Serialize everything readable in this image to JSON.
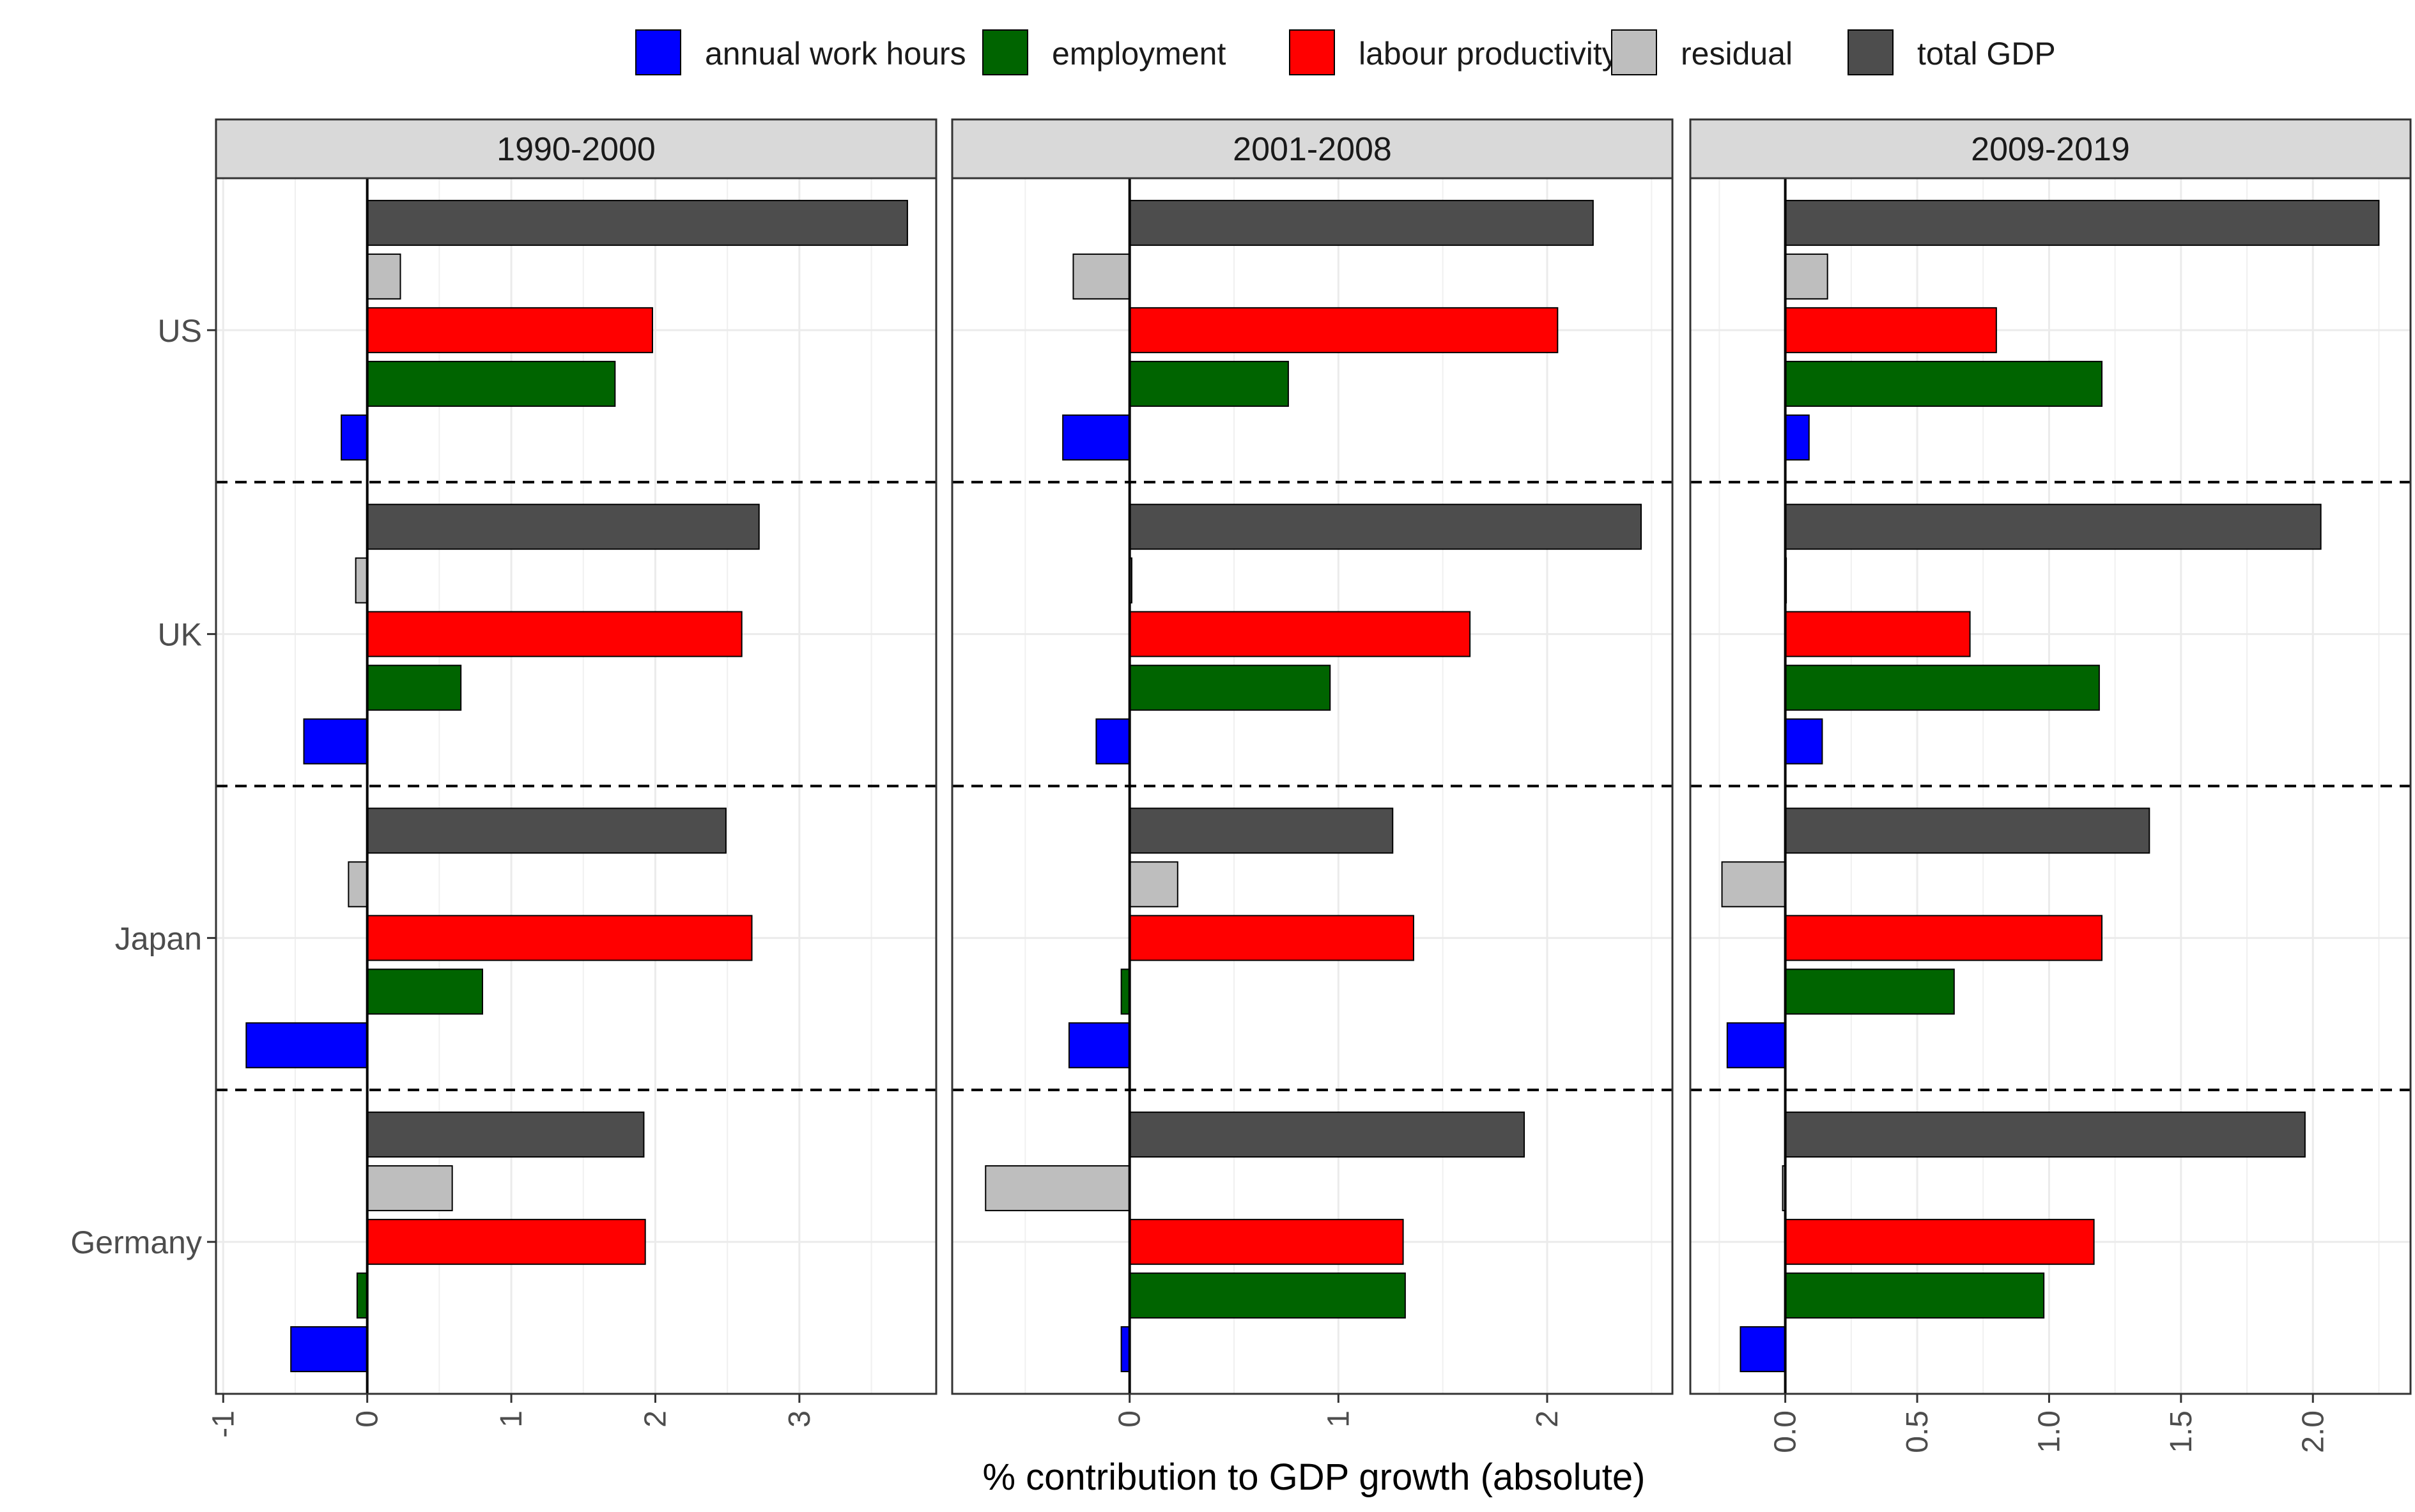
{
  "chart_data": {
    "type": "bar",
    "orientation": "horizontal",
    "xlabel": "% contribution to GDP growth (absolute)",
    "countries": [
      "US",
      "UK",
      "Japan",
      "Germany"
    ],
    "legend": {
      "placement": "top",
      "entries": [
        {
          "name": "annual work hours",
          "color": "#0000ff"
        },
        {
          "name": "employment",
          "color": "#006400"
        },
        {
          "name": "labour productivity",
          "color": "#ff0000"
        },
        {
          "name": "residual",
          "color": "#bebebe"
        },
        {
          "name": "total GDP",
          "color": "#4d4d4d"
        }
      ]
    },
    "panels": [
      {
        "title": "1990-2000",
        "xlim": [
          -1.05,
          3.95
        ],
        "ticks": [
          -1,
          0,
          1,
          2,
          3
        ],
        "tick_labels": [
          "-1",
          "0",
          "1",
          "2",
          "3"
        ],
        "values": {
          "US": {
            "annual work hours": -0.18,
            "employment": 1.72,
            "labour productivity": 1.98,
            "residual": 0.23,
            "total GDP": 3.75
          },
          "UK": {
            "annual work hours": -0.44,
            "employment": 0.65,
            "labour productivity": 2.6,
            "residual": -0.08,
            "total GDP": 2.72
          },
          "Japan": {
            "annual work hours": -0.84,
            "employment": 0.8,
            "labour productivity": 2.67,
            "residual": -0.13,
            "total GDP": 2.49
          },
          "Germany": {
            "annual work hours": -0.53,
            "employment": -0.07,
            "labour productivity": 1.93,
            "residual": 0.59,
            "total GDP": 1.92
          }
        }
      },
      {
        "title": "2001-2008",
        "xlim": [
          -0.85,
          2.6
        ],
        "ticks": [
          0,
          1,
          2
        ],
        "tick_labels": [
          "0",
          "1",
          "2"
        ],
        "values": {
          "US": {
            "annual work hours": -0.32,
            "employment": 0.76,
            "labour productivity": 2.05,
            "residual": -0.27,
            "total GDP": 2.22
          },
          "UK": {
            "annual work hours": -0.16,
            "employment": 0.96,
            "labour productivity": 1.63,
            "residual": 0.01,
            "total GDP": 2.45
          },
          "Japan": {
            "annual work hours": -0.29,
            "employment": -0.04,
            "labour productivity": 1.36,
            "residual": 0.23,
            "total GDP": 1.26
          },
          "Germany": {
            "annual work hours": -0.04,
            "employment": 1.32,
            "labour productivity": 1.31,
            "residual": -0.69,
            "total GDP": 1.89
          }
        }
      },
      {
        "title": "2009-2019",
        "xlim": [
          -0.36,
          2.37
        ],
        "ticks": [
          0,
          0.5,
          1,
          1.5,
          2
        ],
        "tick_labels": [
          "0.0",
          "0.5",
          "1.0",
          "1.5",
          "2.0"
        ],
        "values": {
          "US": {
            "annual work hours": 0.09,
            "employment": 1.2,
            "labour productivity": 0.8,
            "residual": 0.16,
            "total GDP": 2.25
          },
          "UK": {
            "annual work hours": 0.14,
            "employment": 1.19,
            "labour productivity": 0.7,
            "residual": 0.0,
            "total GDP": 2.03
          },
          "Japan": {
            "annual work hours": -0.22,
            "employment": 0.64,
            "labour productivity": 1.2,
            "residual": -0.24,
            "total GDP": 1.38
          },
          "Germany": {
            "annual work hours": -0.17,
            "employment": 0.98,
            "labour productivity": 1.17,
            "residual": -0.01,
            "total GDP": 1.97
          }
        }
      }
    ]
  }
}
